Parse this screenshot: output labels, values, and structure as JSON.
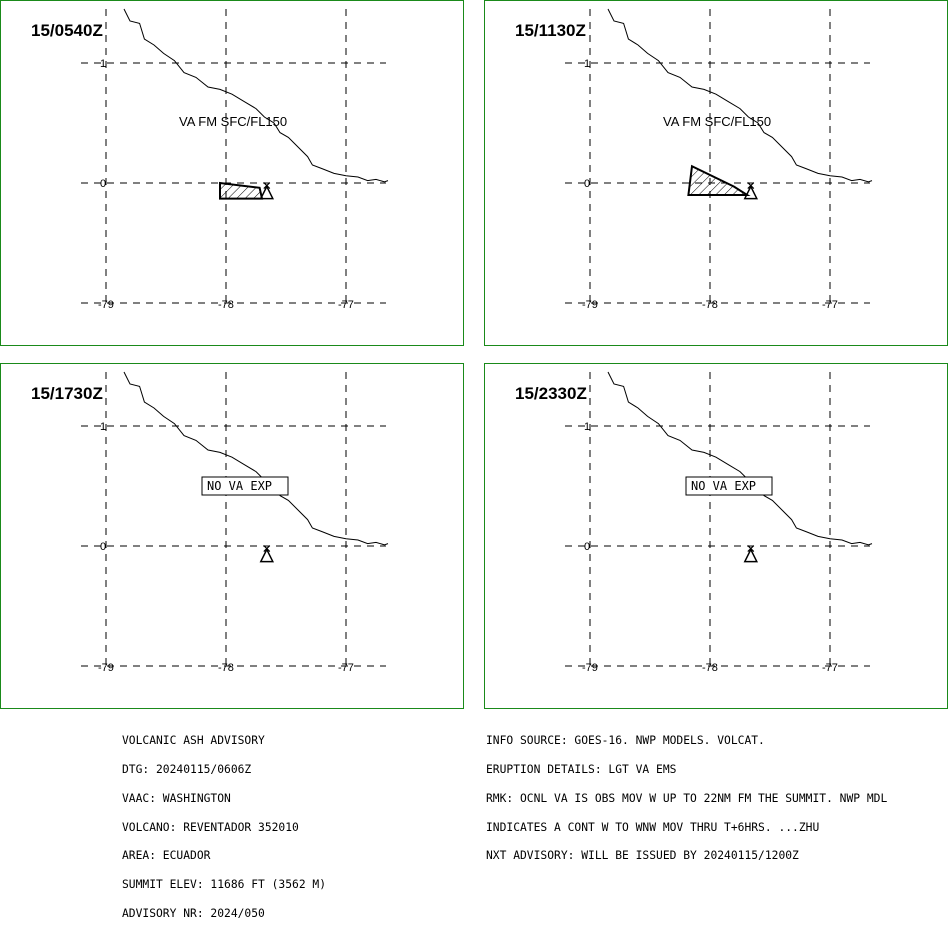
{
  "panels": [
    {
      "time": "15/0540Z",
      "label": "VA FM SFC/FL150",
      "no_va": "",
      "ash": [
        [
          0.95,
          0.02
        ],
        [
          0.99,
          -0.02
        ],
        [
          0.92,
          -0.13
        ],
        [
          0.98,
          -0.13
        ]
      ],
      "ash_shape": [
        [
          -78.05,
          0.0
        ],
        [
          -78.05,
          -0.13
        ],
        [
          -77.7,
          -0.13
        ],
        [
          -77.72,
          -0.04
        ]
      ]
    },
    {
      "time": "15/1130Z",
      "label": "VA FM SFC/FL150",
      "no_va": "",
      "ash_shape": [
        [
          -78.15,
          0.14
        ],
        [
          -78.18,
          -0.1
        ],
        [
          -77.69,
          -0.1
        ],
        [
          -77.8,
          -0.03
        ]
      ]
    },
    {
      "time": "15/1730Z",
      "label": "",
      "no_va": "NO VA EXP",
      "ash_shape": []
    },
    {
      "time": "15/2330Z",
      "label": "",
      "no_va": "NO VA EXP",
      "ash_shape": []
    }
  ],
  "axes": {
    "lon_ticks": [
      "-79",
      "-78",
      "-77"
    ],
    "lat_ticks": [
      "1",
      "0"
    ],
    "lon_values": [
      -79,
      -78,
      -77
    ],
    "lat_values": [
      1,
      0
    ]
  },
  "volcano": {
    "lon": -77.66,
    "lat": -0.08
  },
  "coastline": [
    [
      -78.85,
      1.45
    ],
    [
      -78.8,
      1.35
    ],
    [
      -78.72,
      1.33
    ],
    [
      -78.68,
      1.2
    ],
    [
      -78.6,
      1.15
    ],
    [
      -78.52,
      1.08
    ],
    [
      -78.43,
      1.02
    ],
    [
      -78.35,
      0.92
    ],
    [
      -78.25,
      0.88
    ],
    [
      -78.15,
      0.8
    ],
    [
      -78.05,
      0.78
    ],
    [
      -77.95,
      0.74
    ],
    [
      -77.85,
      0.68
    ],
    [
      -77.75,
      0.62
    ],
    [
      -77.68,
      0.55
    ],
    [
      -77.6,
      0.5
    ],
    [
      -77.55,
      0.42
    ],
    [
      -77.48,
      0.38
    ],
    [
      -77.4,
      0.3
    ],
    [
      -77.32,
      0.22
    ],
    [
      -77.28,
      0.15
    ],
    [
      -77.2,
      0.12
    ],
    [
      -77.1,
      0.08
    ],
    [
      -77.0,
      0.06
    ],
    [
      -76.9,
      0.05
    ],
    [
      -76.82,
      0.02
    ],
    [
      -76.75,
      0.03
    ],
    [
      -76.68,
      0.01
    ],
    [
      -76.65,
      0.02
    ]
  ],
  "advisory_left": [
    "VOLCANIC ASH ADVISORY",
    "DTG: 20240115/0606Z",
    "VAAC: WASHINGTON",
    "VOLCANO: REVENTADOR 352010",
    "AREA: ECUADOR",
    "SUMMIT ELEV: 11686 FT (3562 M)",
    "ADVISORY NR: 2024/050"
  ],
  "advisory_right": [
    "INFO SOURCE: GOES-16. NWP MODELS. VOLCAT.",
    "ERUPTION DETAILS: LGT VA EMS",
    "RMK: OCNL VA IS OBS MOV W UP TO 22NM FM THE SUMMIT. NWP MDL",
    "INDICATES A CONT W TO WNW MOV THRU T+6HRS. ...ZHU",
    "NXT ADVISORY: WILL BE ISSUED BY 20240115/1200Z"
  ],
  "colors": {
    "panel_border": "#1a8a1a",
    "ink": "#000000"
  }
}
